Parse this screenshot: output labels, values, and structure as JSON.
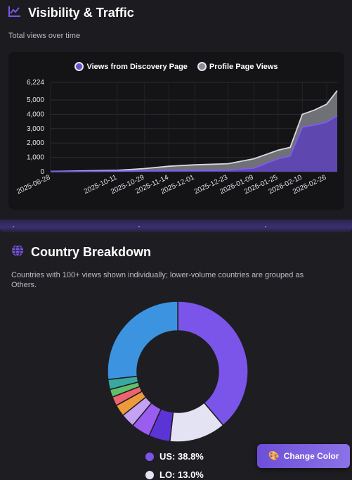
{
  "visibility": {
    "title": "Visibility & Traffic",
    "subtitle": "Total views over time",
    "icon": "line-chart-icon"
  },
  "country": {
    "title": "Country Breakdown",
    "icon": "globe-icon",
    "description_line1": "Countries with 100+ views shown individually; lower-volume countries are grouped as",
    "description_line2": "Others.",
    "legend": [
      {
        "label": "US: 38.8%",
        "color": "#7b55ea"
      },
      {
        "label": "LO: 13.0%",
        "color": "#e3e3f3"
      }
    ]
  },
  "change_color_button": {
    "label": "Change Color",
    "icon": "palette-icon"
  },
  "colors": {
    "accent": "#7b55ea",
    "discovery": "#6a4fd0",
    "profile": "#8a8a92"
  },
  "chart_data": {
    "type": "area",
    "title": "",
    "xlabel": "",
    "ylabel": "",
    "ylim": [
      0,
      6224
    ],
    "yticks": [
      0,
      1000,
      2000,
      3000,
      4000,
      5000,
      6224
    ],
    "ytick_labels": [
      "0",
      "1,000",
      "2,000",
      "3,000",
      "4,000",
      "5,000",
      "6,224"
    ],
    "xtick_labels": [
      "2025-08-28",
      "2025-10-11",
      "2025-10-29",
      "2025-11-14",
      "2025-12-01",
      "2025-12-23",
      "2026-01-09",
      "2026-01-25",
      "2026-02-10",
      "2026-02-26"
    ],
    "x": [
      "2025-08-28",
      "2025-10-11",
      "2025-10-29",
      "2025-11-14",
      "2025-12-01",
      "2025-12-23",
      "2026-01-09",
      "2026-01-25",
      "2026-02-02",
      "2026-02-10",
      "2026-02-18",
      "2026-02-26",
      "2026-03-05"
    ],
    "series": [
      {
        "name": "Views from Discovery Page",
        "values": [
          10,
          40,
          60,
          80,
          90,
          100,
          250,
          900,
          1100,
          3100,
          3250,
          3450,
          3900
        ]
      },
      {
        "name": "Profile Page Views",
        "values": [
          20,
          100,
          220,
          380,
          480,
          560,
          900,
          1500,
          1700,
          4000,
          4300,
          4700,
          5650
        ]
      }
    ],
    "grid": true,
    "legend_position": "top-center"
  },
  "donut_data": {
    "type": "pie",
    "slices": [
      {
        "label": "US",
        "value": 38.8,
        "color": "#7b55ea"
      },
      {
        "label": "LO",
        "value": 13.0,
        "color": "#e3e3f3"
      },
      {
        "label": "",
        "value": 4.9,
        "color": "#5b34d6"
      },
      {
        "label": "",
        "value": 4.4,
        "color": "#9b5cf0"
      },
      {
        "label": "",
        "value": 3.2,
        "color": "#c4a1f3"
      },
      {
        "label": "",
        "value": 2.7,
        "color": "#ec9a3b"
      },
      {
        "label": "",
        "value": 2.1,
        "color": "#ec6470"
      },
      {
        "label": "",
        "value": 1.8,
        "color": "#5fbf6a"
      },
      {
        "label": "",
        "value": 2.3,
        "color": "#39a8a0"
      },
      {
        "label": "",
        "value": 26.8,
        "color": "#3c94e0"
      }
    ]
  }
}
